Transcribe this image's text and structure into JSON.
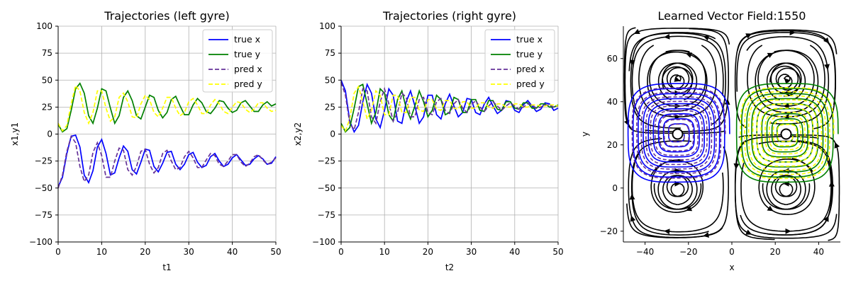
{
  "chart_data": [
    {
      "type": "line",
      "title": "Trajectories (left gyre)",
      "xlabel": "t1",
      "ylabel": "x1,y1",
      "xlim": [
        0,
        50
      ],
      "ylim": [
        -100,
        100
      ],
      "xticks": [
        "0",
        "10",
        "20",
        "30",
        "40",
        "50"
      ],
      "yticks": [
        "100",
        "75",
        "50",
        "25",
        "0",
        "−25",
        "−50",
        "−75",
        "−100"
      ],
      "grid": true,
      "legend": "top-right",
      "series": [
        {
          "name": "true x",
          "color": "#0000ff",
          "dash": false,
          "x": [
            0,
            1,
            2,
            3,
            4,
            5,
            6,
            7,
            8,
            9,
            10,
            11,
            12,
            13,
            14,
            15,
            16,
            17,
            18,
            19,
            20,
            21,
            22,
            23,
            24,
            25,
            26,
            27,
            28,
            29,
            30,
            31,
            32,
            33,
            34,
            35,
            36,
            37,
            38,
            39,
            40,
            41,
            42,
            43,
            44,
            45,
            46,
            47,
            48,
            49,
            50
          ],
          "y": [
            -49,
            -40,
            -18,
            -2,
            -1,
            -12,
            -38,
            -45,
            -34,
            -12,
            -5,
            -18,
            -38,
            -36,
            -22,
            -11,
            -16,
            -33,
            -37,
            -26,
            -14,
            -15,
            -30,
            -35,
            -27,
            -17,
            -16,
            -28,
            -33,
            -28,
            -19,
            -17,
            -26,
            -31,
            -29,
            -21,
            -18,
            -25,
            -30,
            -28,
            -22,
            -19,
            -24,
            -29,
            -28,
            -23,
            -20,
            -23,
            -28,
            -27,
            -21
          ]
        },
        {
          "name": "true y",
          "color": "#008000",
          "dash": false,
          "x": [
            0,
            1,
            2,
            3,
            4,
            5,
            6,
            7,
            8,
            9,
            10,
            11,
            12,
            13,
            14,
            15,
            16,
            17,
            18,
            19,
            20,
            21,
            22,
            23,
            24,
            25,
            26,
            27,
            28,
            29,
            30,
            31,
            32,
            33,
            34,
            35,
            36,
            37,
            38,
            39,
            40,
            41,
            42,
            43,
            44,
            45,
            46,
            47,
            48,
            49,
            50
          ],
          "y": [
            9,
            2,
            5,
            22,
            42,
            47,
            38,
            17,
            10,
            24,
            42,
            40,
            24,
            10,
            17,
            34,
            40,
            31,
            17,
            14,
            25,
            36,
            34,
            22,
            15,
            20,
            32,
            35,
            26,
            18,
            18,
            27,
            33,
            29,
            21,
            19,
            24,
            31,
            30,
            24,
            20,
            22,
            29,
            31,
            26,
            21,
            21,
            27,
            30,
            26,
            28
          ]
        },
        {
          "name": "pred x",
          "color": "#663399",
          "dash": true,
          "x": [
            0,
            1,
            2,
            3,
            4,
            5,
            6,
            7,
            8,
            9,
            10,
            11,
            12,
            13,
            14,
            15,
            16,
            17,
            18,
            19,
            20,
            21,
            22,
            23,
            24,
            25,
            26,
            27,
            28,
            29,
            30,
            31,
            32,
            33,
            34,
            35,
            36,
            37,
            38,
            39,
            40,
            41,
            42,
            43,
            44,
            45,
            46,
            47,
            48,
            49,
            50
          ],
          "y": [
            -50,
            -38,
            -16,
            -2,
            -8,
            -30,
            -44,
            -38,
            -17,
            -8,
            -20,
            -40,
            -40,
            -25,
            -13,
            -15,
            -33,
            -38,
            -30,
            -16,
            -14,
            -28,
            -36,
            -31,
            -18,
            -15,
            -25,
            -33,
            -31,
            -21,
            -16,
            -22,
            -31,
            -31,
            -24,
            -18,
            -20,
            -28,
            -30,
            -25,
            -19,
            -19,
            -26,
            -30,
            -27,
            -21,
            -19,
            -24,
            -28,
            -26,
            -22
          ]
        },
        {
          "name": "pred y",
          "color": "#ffff00",
          "dash": true,
          "x": [
            0,
            1,
            2,
            3,
            4,
            5,
            6,
            7,
            8,
            9,
            10,
            11,
            12,
            13,
            14,
            15,
            16,
            17,
            18,
            19,
            20,
            21,
            22,
            23,
            24,
            25,
            26,
            27,
            28,
            29,
            30,
            31,
            32,
            33,
            34,
            35,
            36,
            37,
            38,
            39,
            40,
            41,
            42,
            43,
            44,
            45,
            46,
            47,
            48,
            49,
            50
          ],
          "y": [
            10,
            3,
            8,
            28,
            45,
            40,
            20,
            10,
            20,
            40,
            40,
            24,
            12,
            16,
            34,
            38,
            30,
            16,
            15,
            28,
            36,
            32,
            20,
            16,
            24,
            34,
            34,
            24,
            17,
            20,
            30,
            33,
            27,
            19,
            19,
            27,
            32,
            28,
            21,
            19,
            25,
            30,
            29,
            23,
            20,
            23,
            29,
            29,
            24,
            21,
            22
          ]
        }
      ]
    },
    {
      "type": "line",
      "title": "Trajectories (right gyre)",
      "xlabel": "t2",
      "ylabel": "x2,y2",
      "xlim": [
        0,
        50
      ],
      "ylim": [
        -100,
        100
      ],
      "xticks": [
        "0",
        "10",
        "20",
        "30",
        "40",
        "50"
      ],
      "yticks": [
        "100",
        "75",
        "50",
        "25",
        "0",
        "−25",
        "−50",
        "−75",
        "−100"
      ],
      "grid": true,
      "legend": "top-right",
      "series": [
        {
          "name": "true x",
          "color": "#0000ff",
          "dash": false,
          "x": [
            0,
            1,
            2,
            3,
            4,
            5,
            6,
            7,
            8,
            9,
            10,
            11,
            12,
            13,
            14,
            15,
            16,
            17,
            18,
            19,
            20,
            21,
            22,
            23,
            24,
            25,
            26,
            27,
            28,
            29,
            30,
            31,
            32,
            33,
            34,
            35,
            36,
            37,
            38,
            39,
            40,
            41,
            42,
            43,
            44,
            45,
            46,
            47,
            48,
            49,
            50
          ],
          "y": [
            50,
            40,
            12,
            2,
            8,
            30,
            46,
            38,
            14,
            6,
            22,
            42,
            36,
            12,
            10,
            30,
            40,
            26,
            10,
            16,
            36,
            36,
            18,
            14,
            28,
            37,
            26,
            16,
            20,
            33,
            32,
            20,
            18,
            28,
            34,
            26,
            19,
            22,
            31,
            30,
            22,
            20,
            27,
            31,
            26,
            21,
            23,
            29,
            28,
            22,
            24
          ]
        },
        {
          "name": "true y",
          "color": "#008000",
          "dash": false,
          "x": [
            0,
            1,
            2,
            3,
            4,
            5,
            6,
            7,
            8,
            9,
            10,
            11,
            12,
            13,
            14,
            15,
            16,
            17,
            18,
            19,
            20,
            21,
            22,
            23,
            24,
            25,
            26,
            27,
            28,
            29,
            30,
            31,
            32,
            33,
            34,
            35,
            36,
            37,
            38,
            39,
            40,
            41,
            42,
            43,
            44,
            45,
            46,
            47,
            48,
            49,
            50
          ],
          "y": [
            10,
            2,
            6,
            24,
            44,
            46,
            28,
            10,
            20,
            42,
            38,
            18,
            12,
            32,
            40,
            24,
            14,
            26,
            40,
            30,
            16,
            22,
            36,
            32,
            18,
            20,
            34,
            32,
            20,
            20,
            32,
            32,
            22,
            21,
            31,
            31,
            23,
            22,
            30,
            30,
            24,
            23,
            29,
            29,
            24,
            24,
            28,
            28,
            25,
            25,
            27
          ]
        },
        {
          "name": "pred x",
          "color": "#663399",
          "dash": true,
          "x": [
            0,
            1,
            2,
            3,
            4,
            5,
            6,
            7,
            8,
            9,
            10,
            11,
            12,
            13,
            14,
            15,
            16,
            17,
            18,
            19,
            20,
            21,
            22,
            23,
            24,
            25,
            26,
            27,
            28,
            29,
            30,
            31,
            32,
            33,
            34,
            35,
            36,
            37,
            38,
            39,
            40,
            41,
            42,
            43,
            44,
            45,
            46,
            47,
            48,
            49,
            50
          ],
          "y": [
            48,
            36,
            10,
            4,
            20,
            42,
            40,
            16,
            10,
            30,
            42,
            28,
            12,
            20,
            38,
            34,
            16,
            16,
            32,
            34,
            20,
            18,
            30,
            33,
            22,
            19,
            28,
            32,
            24,
            20,
            27,
            31,
            25,
            21,
            26,
            30,
            26,
            22,
            26,
            29,
            26,
            23,
            25,
            28,
            27,
            24,
            25,
            27,
            27,
            25,
            26
          ]
        },
        {
          "name": "pred y",
          "color": "#ffff00",
          "dash": true,
          "x": [
            0,
            1,
            2,
            3,
            4,
            5,
            6,
            7,
            8,
            9,
            10,
            11,
            12,
            13,
            14,
            15,
            16,
            17,
            18,
            19,
            20,
            21,
            22,
            23,
            24,
            25,
            26,
            27,
            28,
            29,
            30,
            31,
            32,
            33,
            34,
            35,
            36,
            37,
            38,
            39,
            40,
            41,
            42,
            43,
            44,
            45,
            46,
            47,
            48,
            49,
            50
          ],
          "y": [
            8,
            3,
            14,
            38,
            44,
            30,
            14,
            22,
            40,
            36,
            18,
            18,
            36,
            36,
            20,
            20,
            34,
            34,
            22,
            21,
            32,
            32,
            23,
            22,
            31,
            31,
            24,
            23,
            30,
            30,
            24,
            24,
            29,
            29,
            25,
            24,
            28,
            28,
            25,
            25,
            28,
            28,
            25,
            25,
            27,
            27,
            26,
            26,
            27,
            27,
            26
          ]
        }
      ]
    },
    {
      "type": "streamplot",
      "title": "Learned Vector Field:1550",
      "xlabel": "x",
      "ylabel": "y",
      "xlim": [
        -50,
        50
      ],
      "ylim": [
        -25,
        75
      ],
      "xticks": [
        "−40",
        "−20",
        "0",
        "20",
        "40"
      ],
      "yticks": [
        "60",
        "40",
        "20",
        "0",
        "−20"
      ],
      "grid": false,
      "centers": [
        [
          -25,
          25
        ],
        [
          25,
          25
        ]
      ],
      "trajectory_colors": {
        "left_true": "#0000ff",
        "left_pred": "#663399",
        "right_true": "#008000",
        "right_pred": "#ffff00"
      },
      "stream_color": "#000000"
    }
  ]
}
